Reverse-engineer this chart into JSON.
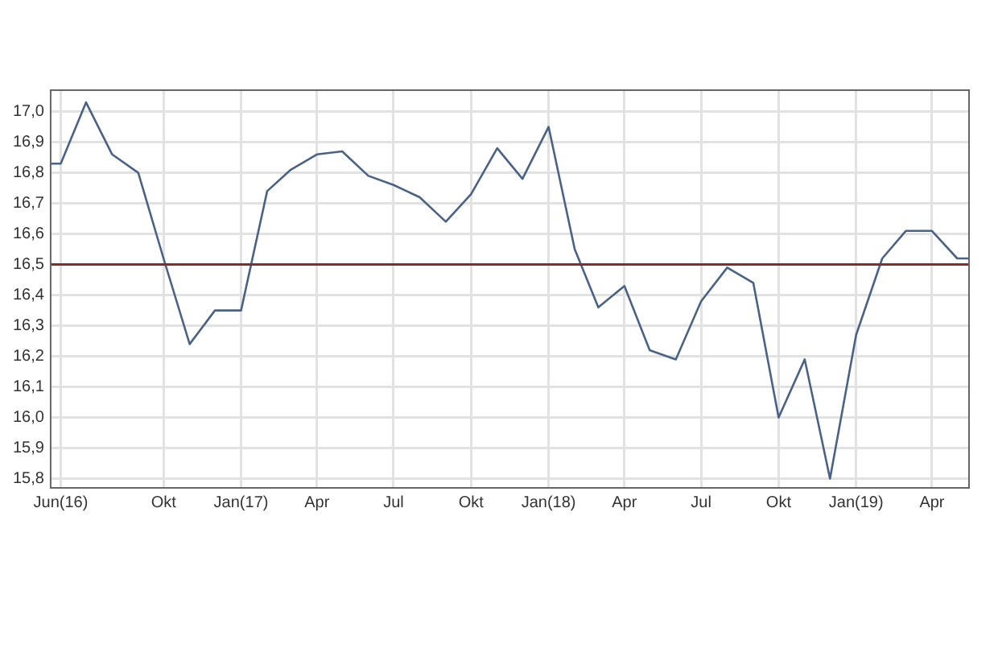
{
  "chart_data": {
    "type": "line",
    "x": [
      "2016-05-20",
      "2016-06",
      "2016-07",
      "2016-08",
      "2016-09",
      "2016-10",
      "2016-11",
      "2016-12",
      "2017-01",
      "2017-02",
      "2017-03",
      "2017-04",
      "2017-05",
      "2017-06",
      "2017-07",
      "2017-08",
      "2017-09",
      "2017-10",
      "2017-11",
      "2017-12",
      "2018-01",
      "2018-02",
      "2018-03",
      "2018-04",
      "2018-05",
      "2018-06",
      "2018-07",
      "2018-08",
      "2018-09",
      "2018-10",
      "2018-11",
      "2018-12",
      "2019-01",
      "2019-02",
      "2019-03",
      "2019-04",
      "2019-05",
      "2019-05-15"
    ],
    "series": [
      {
        "color": "#4a6285",
        "values": [
          16.83,
          16.83,
          17.03,
          16.86,
          16.8,
          16.52,
          16.24,
          16.35,
          16.35,
          16.74,
          16.81,
          16.86,
          16.87,
          16.79,
          16.76,
          16.72,
          16.64,
          16.73,
          16.88,
          16.78,
          16.95,
          16.55,
          16.36,
          16.43,
          16.22,
          16.19,
          16.38,
          16.49,
          16.44,
          16.0,
          16.19,
          15.8,
          16.27,
          16.52,
          16.61,
          16.61,
          16.52,
          16.52
        ]
      }
    ],
    "xlim": [
      "2016-05-20",
      "2019-05-15"
    ],
    "xticks": [
      {
        "value": "2016-06",
        "label": "Jun(16)"
      },
      {
        "value": "2016-10",
        "label": "Okt"
      },
      {
        "value": "2017-01",
        "label": "Jan(17)"
      },
      {
        "value": "2017-04",
        "label": "Apr"
      },
      {
        "value": "2017-07",
        "label": "Jul"
      },
      {
        "value": "2017-10",
        "label": "Okt"
      },
      {
        "value": "2018-01",
        "label": "Jan(18)"
      },
      {
        "value": "2018-04",
        "label": "Apr"
      },
      {
        "value": "2018-07",
        "label": "Jul"
      },
      {
        "value": "2018-10",
        "label": "Okt"
      },
      {
        "value": "2019-01",
        "label": "Jan(19)"
      },
      {
        "value": "2019-04",
        "label": "Apr"
      }
    ],
    "ylim": [
      15.77,
      17.07
    ],
    "yticks": [
      {
        "value": 15.8,
        "label": "15,8"
      },
      {
        "value": 15.9,
        "label": "15,9"
      },
      {
        "value": 16.0,
        "label": "16,0"
      },
      {
        "value": 16.1,
        "label": "16,1"
      },
      {
        "value": 16.2,
        "label": "16,2"
      },
      {
        "value": 16.3,
        "label": "16,3"
      },
      {
        "value": 16.4,
        "label": "16,4"
      },
      {
        "value": 16.5,
        "label": "16,5"
      },
      {
        "value": 16.6,
        "label": "16,6"
      },
      {
        "value": 16.7,
        "label": "16,7"
      },
      {
        "value": 16.8,
        "label": "16,8"
      },
      {
        "value": 16.9,
        "label": "16,9"
      },
      {
        "value": 17.0,
        "label": "17,0"
      }
    ],
    "ref_lines": [
      {
        "axis": "y",
        "value": 16.5,
        "color": "#8b2a2a"
      }
    ],
    "grid": true,
    "legend": false,
    "marker": "none",
    "line_style": "solid"
  }
}
